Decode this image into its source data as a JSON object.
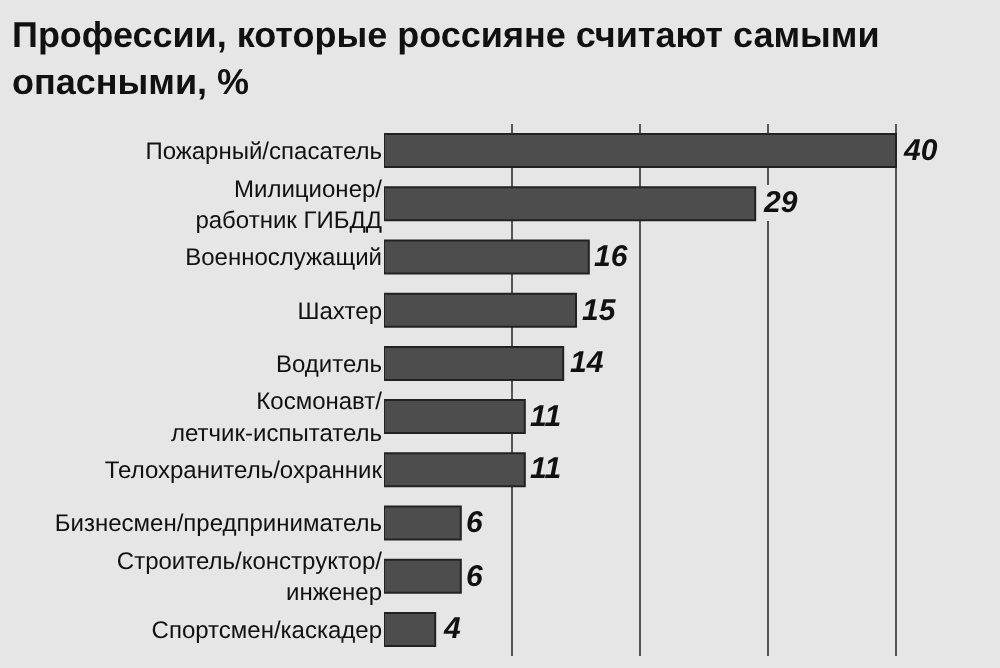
{
  "chart_data": {
    "type": "bar",
    "orientation": "horizontal",
    "title": "Профессии, которые россияне считают самыми опасными, %",
    "categories": [
      "Пожарный/спасатель",
      "Милиционер/\nработник ГИБДД",
      "Военнослужащий",
      "Шахтер",
      "Водитель",
      "Космонавт/\nлетчик-испытатель",
      "Телохранитель/охранник",
      "Бизнесмен/предприниматель",
      "Строитель/конструктор/\nинженер",
      "Спортсмен/каскадер"
    ],
    "values": [
      40,
      29,
      16,
      15,
      14,
      11,
      11,
      6,
      6,
      4
    ],
    "color": "#4d4d4d",
    "data_labels": true,
    "grid": "x",
    "tick_labels": "y"
  }
}
